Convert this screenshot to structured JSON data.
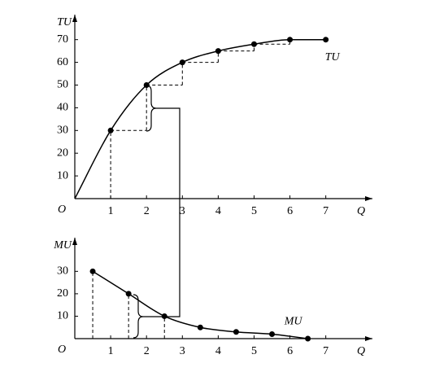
{
  "chart_data": [
    {
      "type": "line",
      "y_label": "TU",
      "x_label": "Q",
      "origin_label": "O",
      "curve_label": "TU",
      "x": [
        0,
        1,
        2,
        3,
        4,
        5,
        6,
        7
      ],
      "values": [
        0,
        30,
        50,
        60,
        65,
        68,
        70,
        70
      ],
      "xlim": [
        0,
        8.3
      ],
      "ylim": [
        0,
        81
      ],
      "xticks": [
        1,
        2,
        3,
        4,
        5,
        6,
        7
      ],
      "yticks": [
        10,
        20,
        30,
        40,
        50,
        60,
        70
      ],
      "color": "#000000"
    },
    {
      "type": "line",
      "y_label": "MU",
      "x_label": "Q",
      "origin_label": "O",
      "curve_label": "MU",
      "x": [
        0.5,
        1.5,
        2.5,
        3.5,
        4.5,
        5.5,
        6.5
      ],
      "values": [
        30,
        20,
        10,
        5,
        3,
        2,
        0
      ],
      "xlim": [
        0,
        8.3
      ],
      "ylim": [
        0,
        45
      ],
      "xticks": [
        1,
        2,
        3,
        4,
        5,
        6,
        7
      ],
      "yticks": [
        10,
        20,
        30
      ],
      "color": "#000000"
    }
  ]
}
